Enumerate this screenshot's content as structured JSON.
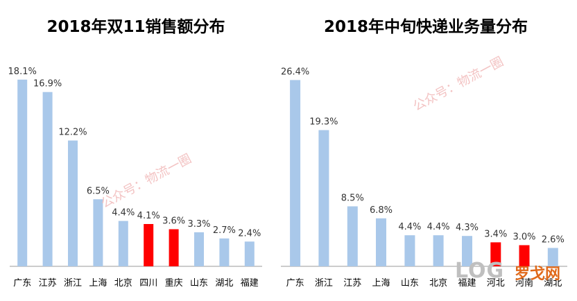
{
  "watermarks": {
    "left": "公众号：物流一圈",
    "right": "公众号：物流一圈",
    "logo_text": "LOG",
    "logo_cn": "罗戈网"
  },
  "colors": {
    "bar_default": "#a9c8ea",
    "bar_highlight": "#ff0000",
    "axis": "#9a9a9a"
  },
  "chart_data": [
    {
      "type": "bar",
      "title": "2018年双11销售额分布",
      "categories": [
        "广东",
        "江苏",
        "浙江",
        "上海",
        "北京",
        "四川",
        "重庆",
        "山东",
        "湖北",
        "福建"
      ],
      "values": [
        18.1,
        16.9,
        12.2,
        6.5,
        4.4,
        4.1,
        3.6,
        3.3,
        2.7,
        2.4
      ],
      "value_labels": [
        "18.1%",
        "16.9%",
        "12.2%",
        "6.5%",
        "4.4%",
        "4.1%",
        "3.6%",
        "3.3%",
        "2.7%",
        "2.4%"
      ],
      "highlight": [
        "四川",
        "重庆"
      ],
      "ylim": [
        0,
        19.5
      ],
      "grid": false,
      "xlabel": "",
      "ylabel": ""
    },
    {
      "type": "bar",
      "title": "2018年中旬快递业务量分布",
      "categories": [
        "广东",
        "浙江",
        "江苏",
        "上海",
        "山东",
        "北京",
        "福建",
        "河北",
        "河南",
        "湖北"
      ],
      "values": [
        26.4,
        19.3,
        8.5,
        6.8,
        4.4,
        4.4,
        4.3,
        3.4,
        3.0,
        2.6
      ],
      "value_labels": [
        "26.4%",
        "19.3%",
        "8.5%",
        "6.8%",
        "4.4%",
        "4.4%",
        "4.3%",
        "3.4%",
        "3.0%",
        "2.6%"
      ],
      "highlight": [
        "河北",
        "河南"
      ],
      "ylim": [
        0,
        28.5
      ],
      "grid": false,
      "xlabel": "",
      "ylabel": ""
    }
  ]
}
